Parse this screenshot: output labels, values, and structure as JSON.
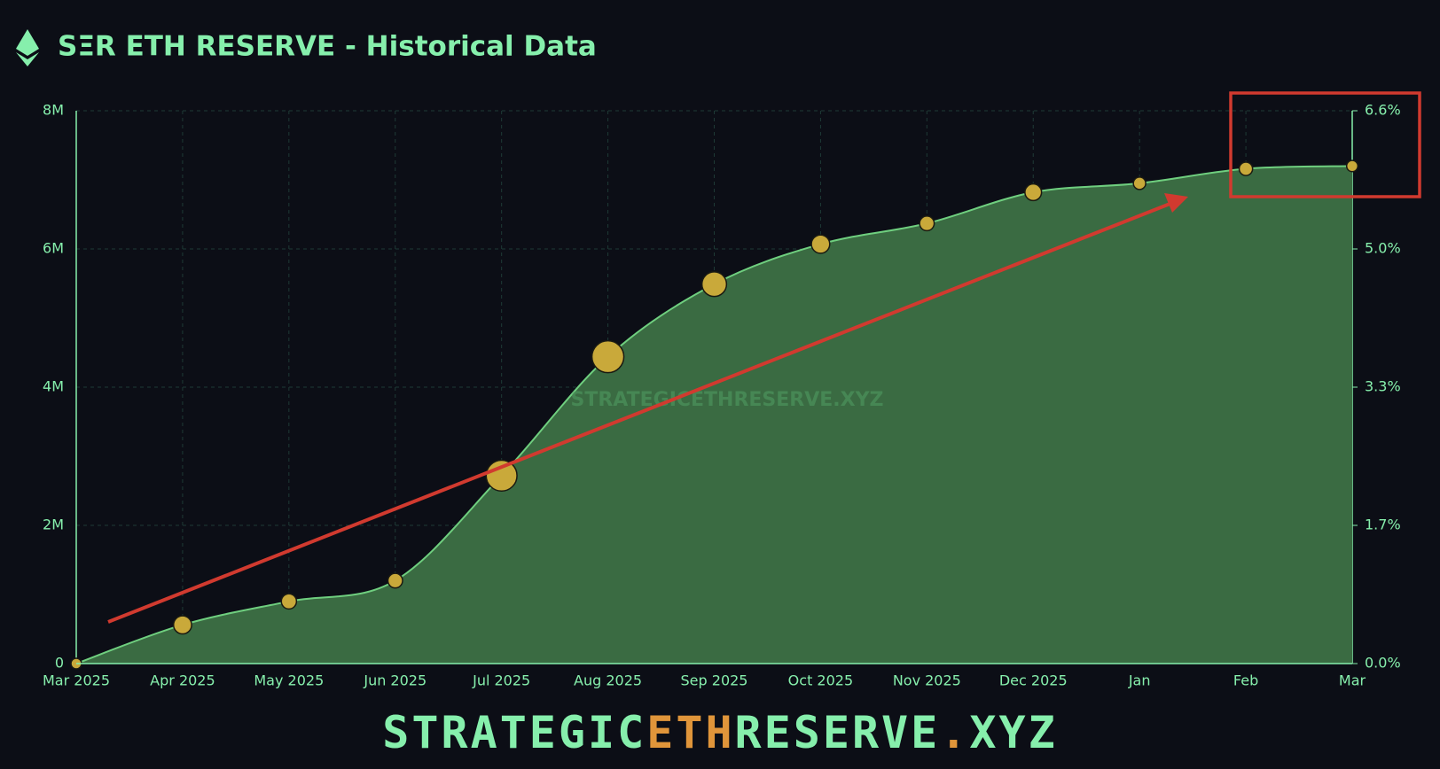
{
  "header": {
    "title": "SΞR ETH RESERVE - Historical Data"
  },
  "chart_data": {
    "type": "area",
    "watermark": "STRATEGICETHRESERVE.XYZ",
    "categories": [
      "Mar 2025",
      "Apr 2025",
      "May 2025",
      "Jun 2025",
      "Jul 2025",
      "Aug 2025",
      "Sep 2025",
      "Oct 2025",
      "Nov 2025",
      "Dec 2025",
      "Jan",
      "Feb",
      "Mar"
    ],
    "series": [
      {
        "color": "#6fcf7f",
        "values": [
          0,
          560000,
          900000,
          1200000,
          2720000,
          4440000,
          5490000,
          6070000,
          6370000,
          6820000,
          6950000,
          7160000,
          7200000
        ]
      }
    ],
    "ylim": [
      0,
      8000000
    ],
    "yticks": [
      0,
      {
        "value": 2000000,
        "label": "2M"
      },
      {
        "value": 4000000,
        "label": "4M"
      },
      {
        "value": 6000000,
        "label": "6M"
      },
      {
        "value": 8000000,
        "label": "8M"
      }
    ],
    "y2lim": [
      0,
      6.6
    ],
    "y2ticks": [
      {
        "value": 0,
        "label": "0.0%"
      },
      {
        "value": 1.65,
        "label": "1.7%"
      },
      {
        "value": 3.3,
        "label": "3.3%"
      },
      {
        "value": 4.95,
        "label": "5.0%"
      },
      {
        "value": 6.6,
        "label": "6.6%"
      }
    ],
    "grid": true
  },
  "footer": {
    "parts": [
      "STRATEGIC",
      "ETH",
      "RESERVE",
      ".",
      "XYZ"
    ]
  }
}
